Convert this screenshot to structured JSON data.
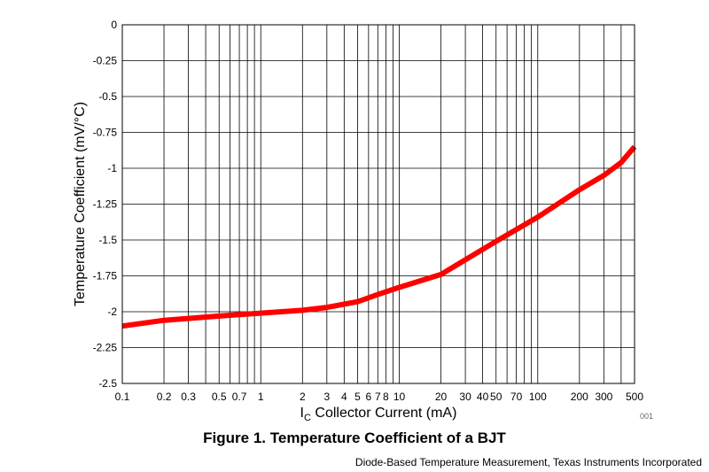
{
  "chart_data": {
    "type": "line",
    "caption": "Figure 1. Temperature Coefficient of a BJT",
    "xlabel_main": "I",
    "xlabel_sub": "C",
    "xlabel_rest": " Collector Current (mA)",
    "ylabel": "Temperature Coefficient (mV/°C)",
    "xscale": "log",
    "xlim": [
      0.1,
      500
    ],
    "ylim": [
      -2.5,
      0
    ],
    "grid": true,
    "x_ticks": [
      0.1,
      0.2,
      0.3,
      0.5,
      0.7,
      1,
      2,
      3,
      4,
      5,
      6,
      7,
      8,
      10,
      20,
      30,
      40,
      50,
      70,
      100,
      200,
      300,
      500
    ],
    "x_tick_labels": [
      "0.1",
      "0.2",
      "0.3",
      "0.5",
      "0.7",
      "1",
      "2",
      "3",
      "4",
      "5",
      "6",
      "7",
      "8",
      "10",
      "20",
      "30",
      "40",
      "50",
      "70",
      "100",
      "200",
      "300",
      "500"
    ],
    "x_grid_lines": [
      0.1,
      0.2,
      0.3,
      0.4,
      0.5,
      0.6,
      0.7,
      0.8,
      0.9,
      1,
      2,
      3,
      4,
      5,
      6,
      7,
      8,
      9,
      10,
      20,
      30,
      40,
      50,
      60,
      70,
      80,
      90,
      100,
      200,
      300,
      400,
      500
    ],
    "y_ticks": [
      0,
      -0.25,
      -0.5,
      -0.75,
      -1,
      -1.25,
      -1.5,
      -1.75,
      -2,
      -2.25,
      -2.5
    ],
    "y_tick_labels": [
      "0",
      "-0.25",
      "-0.5",
      "-0.75",
      "-1",
      "-1.25",
      "-1.5",
      "-1.75",
      "-2",
      "-2.25",
      "-2.5"
    ],
    "series": [
      {
        "color": "#ff0000",
        "x": [
          0.1,
          0.2,
          0.5,
          1,
          2,
          3,
          5,
          7,
          10,
          20,
          50,
          100,
          200,
          300,
          400,
          500
        ],
        "y": [
          -2.1,
          -2.06,
          -2.03,
          -2.01,
          -1.99,
          -1.97,
          -1.93,
          -1.88,
          -1.83,
          -1.74,
          -1.51,
          -1.34,
          -1.15,
          -1.05,
          -0.96,
          -0.85
        ]
      }
    ]
  },
  "figure_id": "001",
  "source_text": "Diode-Based Temperature Measurement, Texas Instruments Incorporated"
}
